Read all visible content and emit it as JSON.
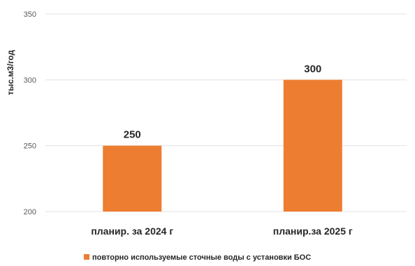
{
  "chart_data": {
    "type": "bar",
    "title": "",
    "xlabel": "",
    "ylabel": "тыс.м3/год",
    "categories": [
      "планир. за 2024 г",
      "планир.за 2025 г"
    ],
    "series": [
      {
        "name": "повторно используемые сточные воды с установки БОС",
        "color": "#ED7D31",
        "values": [
          250,
          300
        ],
        "data_labels": [
          "250",
          "300"
        ]
      }
    ],
    "ylim": [
      200,
      350
    ],
    "yticks": [
      200,
      250,
      300,
      350
    ],
    "ytick_labels": [
      "200",
      "250",
      "300",
      "350"
    ],
    "grid": true,
    "legend": "bottom"
  }
}
